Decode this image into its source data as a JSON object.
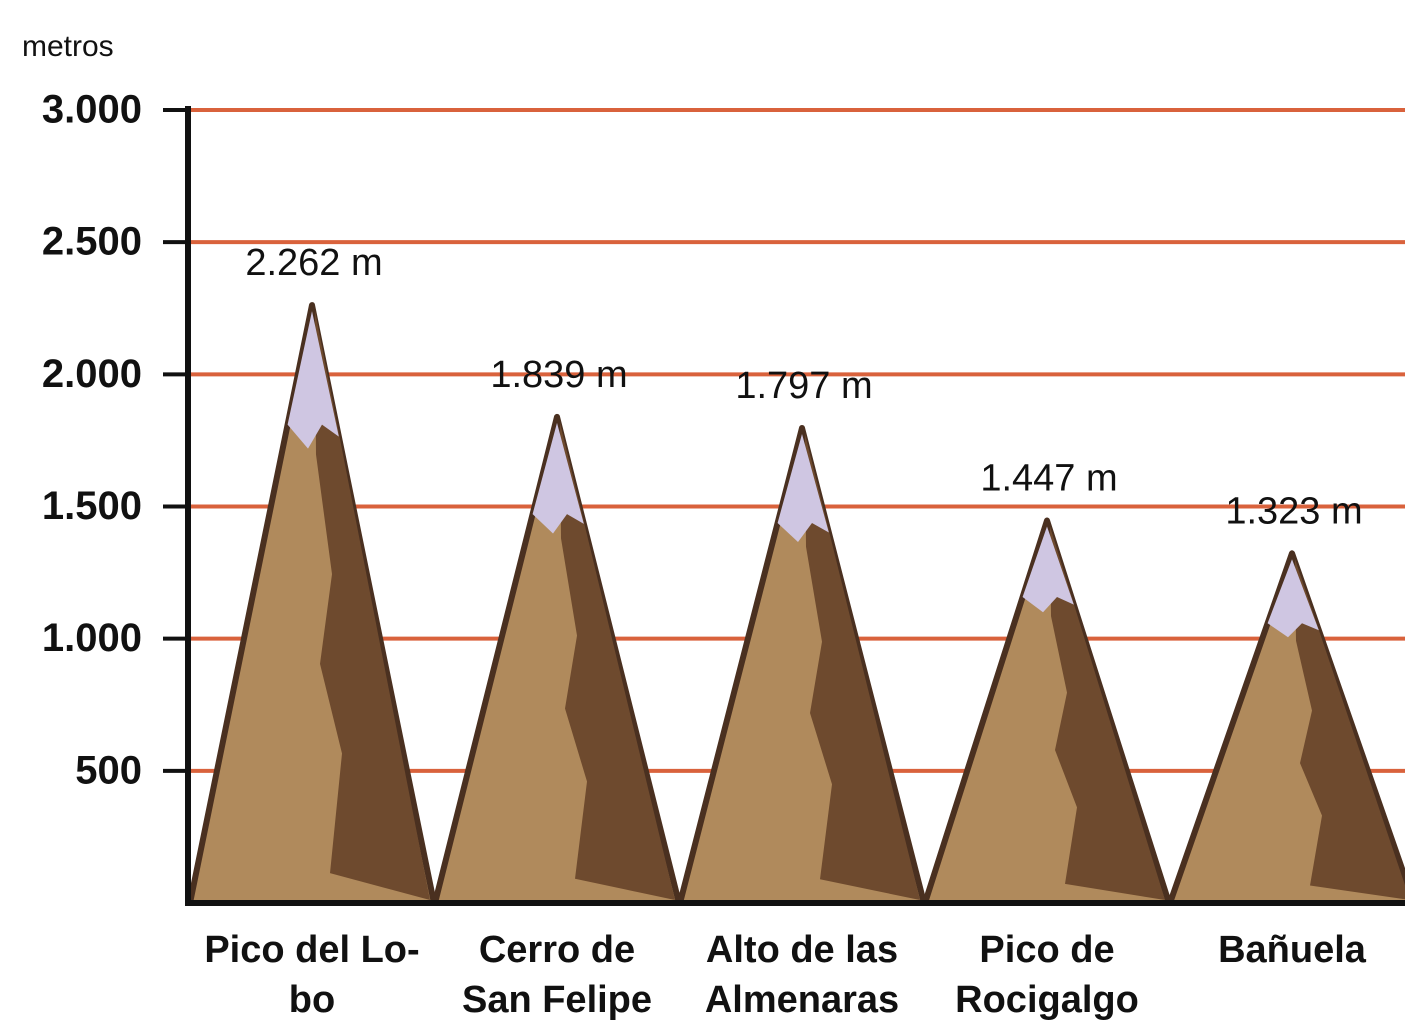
{
  "chart_data": {
    "type": "mountain",
    "y_label": "metros",
    "categories": [
      "Pico del Lo-\nbo",
      "Cerro de\nSan Felipe",
      "Alto de las\nAlmenaras",
      "Pico de\nRocigalgo",
      "Bañuela"
    ],
    "values": [
      2262,
      1839,
      1797,
      1447,
      1323
    ],
    "value_labels": [
      "2.262 m",
      "1.839 m",
      "1.797 m",
      "1.447 m",
      "1.323 m"
    ],
    "color": "#b08a5c",
    "ylim": [
      0,
      3000
    ],
    "yticks": [
      500,
      {
        "value": 1000,
        "label": "1.000"
      },
      {
        "value": 1500,
        "label": "1.500"
      },
      {
        "value": 2000,
        "label": "2.000"
      },
      {
        "value": 2500,
        "label": "2.500"
      },
      {
        "value": 3000,
        "label": "3.000"
      }
    ],
    "grid": true,
    "grid_color": "#d9623c"
  }
}
